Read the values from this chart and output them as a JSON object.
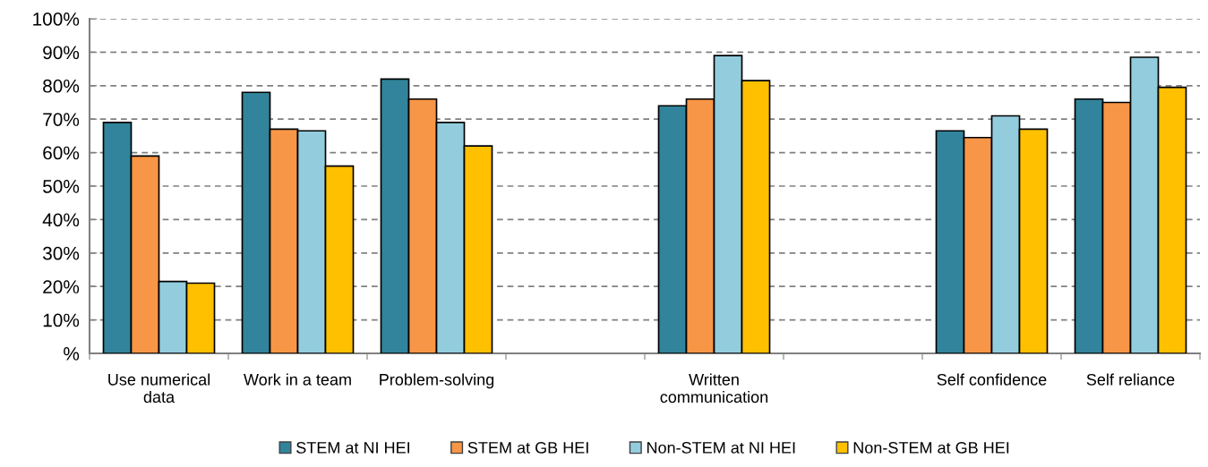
{
  "chart_data": {
    "type": "bar",
    "categories": [
      "Use numerical\ndata",
      "Work in a team",
      "Problem-solving",
      null,
      "Written\ncommunication",
      null,
      "Self confidence",
      "Self reliance"
    ],
    "series": [
      {
        "name": "STEM at NI HEI",
        "color": "#31849b",
        "values": [
          69,
          78,
          82,
          null,
          74,
          null,
          66.5,
          76
        ]
      },
      {
        "name": "STEM at GB HEI",
        "color": "#f79646",
        "values": [
          59,
          67,
          76,
          null,
          76,
          null,
          64.5,
          75
        ]
      },
      {
        "name": "Non-STEM at NI HEI",
        "color": "#93cddd",
        "values": [
          21.5,
          66.5,
          69,
          null,
          89,
          null,
          71,
          88.5
        ]
      },
      {
        "name": "Non-STEM at GB HEI",
        "color": "#ffc000",
        "values": [
          21,
          56,
          62,
          null,
          81.5,
          null,
          67,
          79.5
        ]
      }
    ],
    "ylim": [
      0,
      100
    ],
    "yticks": [
      {
        "value": 0,
        "label": "%"
      },
      {
        "value": 10,
        "label": "10%"
      },
      {
        "value": 20,
        "label": "20%"
      },
      {
        "value": 30,
        "label": "30%"
      },
      {
        "value": 40,
        "label": "40%"
      },
      {
        "value": 50,
        "label": "50%"
      },
      {
        "value": 60,
        "label": "60%"
      },
      {
        "value": 70,
        "label": "70%"
      },
      {
        "value": 80,
        "label": "80%"
      },
      {
        "value": 90,
        "label": "90%"
      },
      {
        "value": 100,
        "label": "100%"
      }
    ],
    "grid": "y",
    "legend": "bottom"
  }
}
